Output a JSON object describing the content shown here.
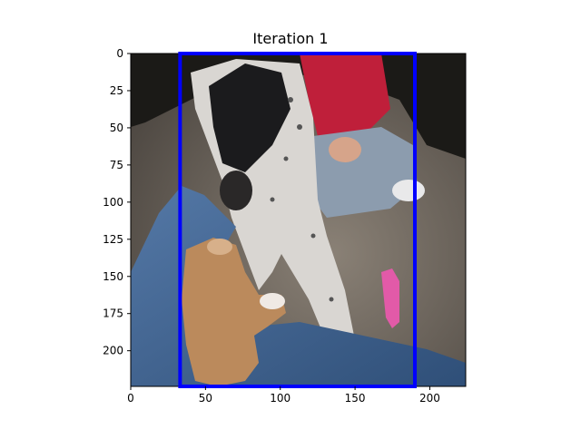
{
  "title": "Iteration 1",
  "image_scene": "photo",
  "axes": {
    "x_ticks": [
      "0",
      "50",
      "100",
      "150",
      "200"
    ],
    "y_ticks": [
      "0",
      "25",
      "50",
      "75",
      "100",
      "125",
      "150",
      "175",
      "200"
    ],
    "x_range": [
      0,
      224
    ],
    "y_range": [
      224,
      0
    ]
  },
  "bounding_box": {
    "x_min": 33,
    "x_max": 190,
    "y_min": 0,
    "y_max": 224,
    "color": "#0000ff"
  },
  "colors": {
    "carpet": "#6f675d",
    "dark_bg": "#1a1a16",
    "denim": "#3f6796",
    "puppy": "#bb8a5c",
    "dog_white": "#d9d6d2",
    "dog_black": "#1b1b1d",
    "shirt_red": "#bf1f3a",
    "toy_pink": "#e25aa8"
  }
}
